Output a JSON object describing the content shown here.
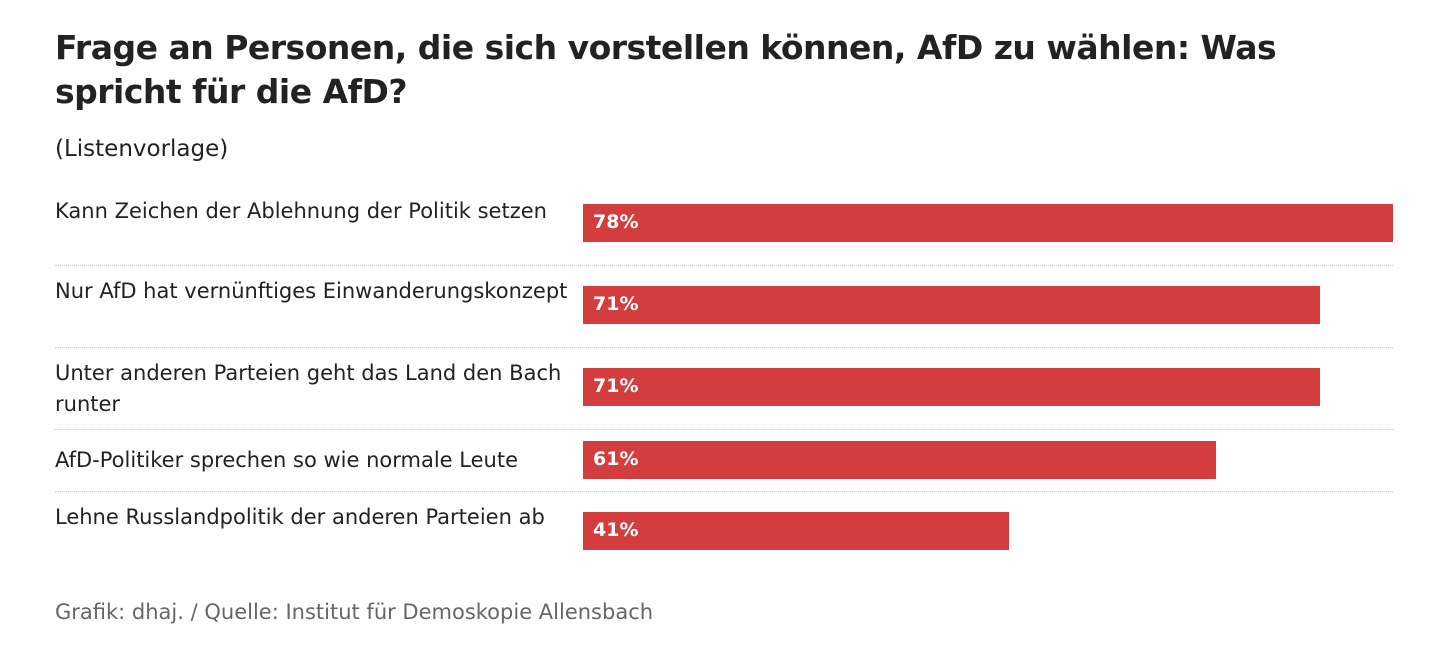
{
  "chart_data": {
    "type": "bar",
    "orientation": "horizontal",
    "title": "Frage an Personen, die sich vorstellen können, AfD zu wählen: Was spricht für die AfD?",
    "subtitle": "(Listenvorlage)",
    "categories": [
      "Kann Zeichen der Ablehnung der Politik setzen",
      "Nur AfD hat vernünftiges Einwanderungskonzept",
      "Unter anderen Parteien geht das Land den Bach runter",
      "AfD-Politiker sprechen so wie normale Leute",
      "Lehne Russlandpolitik der anderen Parteien ab"
    ],
    "values": [
      78,
      71,
      71,
      61,
      41
    ],
    "value_labels": [
      "78%",
      "71%",
      "71%",
      "61%",
      "41%"
    ],
    "unit": "%",
    "xlim": [
      0,
      78
    ],
    "grid": false,
    "bar_color": "#d33d3d",
    "footer": "Grafik: dhaj. / Quelle: Institut für Demoskopie Allensbach"
  }
}
